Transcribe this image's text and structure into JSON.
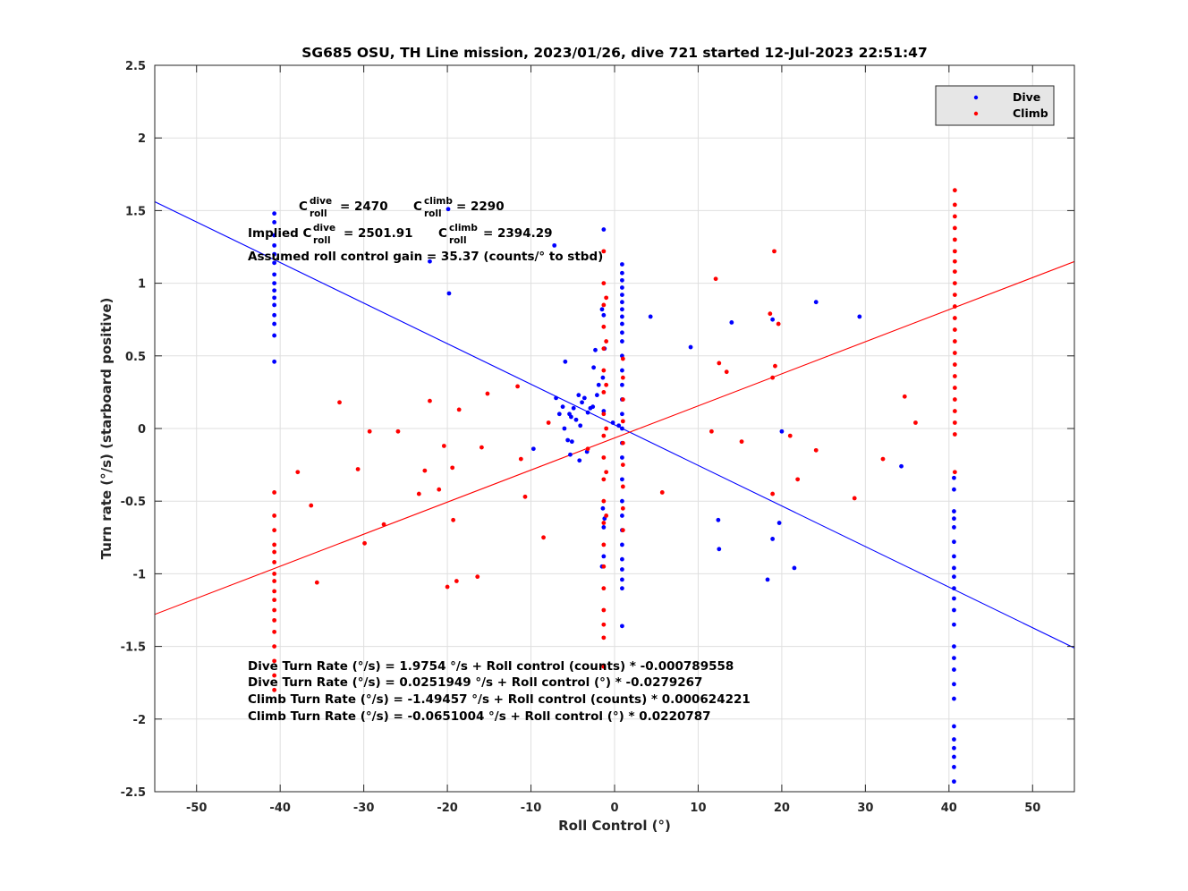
{
  "chart_data": {
    "type": "scatter",
    "title": "SG685 OSU, TH Line mission, 2023/01/26, dive 721 started 12-Jul-2023 22:51:47",
    "xlabel": "Roll Control (°)",
    "ylabel": "Turn rate (°/s) (starboard positive)",
    "xlim": [
      -55,
      55
    ],
    "ylim": [
      -2.5,
      2.5
    ],
    "xticks": [
      -50,
      -40,
      -30,
      -20,
      -10,
      0,
      10,
      20,
      30,
      40,
      50
    ],
    "yticks": [
      -2.5,
      -2,
      -1.5,
      -1,
      -0.5,
      0,
      0.5,
      1,
      1.5,
      2,
      2.5
    ],
    "xtick_labels": [
      "-50",
      "-40",
      "-30",
      "-20",
      "-10",
      "0",
      "10",
      "20",
      "30",
      "40",
      "50"
    ],
    "ytick_labels": [
      "-2.5",
      "-2",
      "-1.5",
      "-1",
      "-0.5",
      "0",
      "0.5",
      "1",
      "1.5",
      "2",
      "2.5"
    ],
    "grid": true,
    "legend_position": "top-right",
    "colors": {
      "dive": "#0000ff",
      "climb": "#ff0000"
    },
    "series": [
      {
        "name": "Dive",
        "color": "#0000ff",
        "points": [
          [
            -40.7,
            1.48
          ],
          [
            -40.7,
            1.42
          ],
          [
            -40.7,
            1.33
          ],
          [
            -40.7,
            1.26
          ],
          [
            -40.7,
            1.2
          ],
          [
            -40.7,
            1.14
          ],
          [
            -40.7,
            1.06
          ],
          [
            -40.7,
            1.0
          ],
          [
            -40.7,
            0.95
          ],
          [
            -40.7,
            0.9
          ],
          [
            -40.7,
            0.85
          ],
          [
            -40.7,
            0.78
          ],
          [
            -40.7,
            0.72
          ],
          [
            -40.7,
            0.64
          ],
          [
            -40.7,
            0.46
          ],
          [
            -19.9,
            1.51
          ],
          [
            -19.8,
            0.93
          ],
          [
            -22.1,
            1.15
          ],
          [
            -7.2,
            1.26
          ],
          [
            -5.9,
            0.46
          ],
          [
            -7.0,
            0.21
          ],
          [
            -6.6,
            0.1
          ],
          [
            -6.2,
            0.15
          ],
          [
            -5.4,
            0.1
          ],
          [
            -5.2,
            0.08
          ],
          [
            -4.9,
            0.14
          ],
          [
            -4.6,
            0.06
          ],
          [
            -4.3,
            0.23
          ],
          [
            -4.1,
            0.02
          ],
          [
            -3.9,
            0.18
          ],
          [
            -3.6,
            0.21
          ],
          [
            -3.2,
            0.11
          ],
          [
            -2.9,
            0.14
          ],
          [
            -2.6,
            0.15
          ],
          [
            -2.3,
            0.54
          ],
          [
            -2.5,
            0.42
          ],
          [
            -2.1,
            0.23
          ],
          [
            -1.9,
            0.3
          ],
          [
            -6.0,
            0.0
          ],
          [
            -5.6,
            -0.08
          ],
          [
            -5.1,
            -0.09
          ],
          [
            -4.2,
            -0.22
          ],
          [
            -5.3,
            -0.18
          ],
          [
            -9.7,
            -0.14
          ],
          [
            -3.3,
            -0.16
          ],
          [
            -0.2,
            0.04
          ],
          [
            0.5,
            0.02
          ],
          [
            -1.3,
            1.37
          ],
          [
            -1.5,
            0.82
          ],
          [
            -1.3,
            0.78
          ],
          [
            -1.2,
            0.55
          ],
          [
            -1.4,
            0.35
          ],
          [
            -1.3,
            0.12
          ],
          [
            -1.4,
            -0.55
          ],
          [
            -1.3,
            -0.68
          ],
          [
            -1.5,
            -0.95
          ],
          [
            -1.3,
            -0.88
          ],
          [
            -1.2,
            -0.62
          ],
          [
            0.9,
            1.13
          ],
          [
            0.9,
            1.07
          ],
          [
            0.9,
            1.02
          ],
          [
            0.9,
            0.97
          ],
          [
            0.9,
            0.92
          ],
          [
            0.9,
            0.87
          ],
          [
            0.9,
            0.82
          ],
          [
            0.9,
            0.77
          ],
          [
            0.9,
            0.72
          ],
          [
            0.9,
            0.66
          ],
          [
            0.9,
            0.6
          ],
          [
            0.9,
            0.5
          ],
          [
            0.9,
            0.4
          ],
          [
            0.9,
            0.3
          ],
          [
            0.9,
            0.2
          ],
          [
            0.9,
            0.1
          ],
          [
            0.9,
            0.0
          ],
          [
            0.9,
            -0.1
          ],
          [
            0.9,
            -0.2
          ],
          [
            0.9,
            -0.35
          ],
          [
            0.9,
            -0.5
          ],
          [
            0.9,
            -0.6
          ],
          [
            0.9,
            -0.7
          ],
          [
            0.9,
            -0.8
          ],
          [
            0.9,
            -0.9
          ],
          [
            0.9,
            -0.97
          ],
          [
            0.9,
            -1.04
          ],
          [
            0.9,
            -1.1
          ],
          [
            0.9,
            -1.36
          ],
          [
            4.3,
            0.77
          ],
          [
            9.1,
            0.56
          ],
          [
            14.0,
            0.73
          ],
          [
            18.9,
            0.75
          ],
          [
            24.1,
            0.87
          ],
          [
            29.3,
            0.77
          ],
          [
            20.0,
            -0.02
          ],
          [
            34.3,
            -0.26
          ],
          [
            12.4,
            -0.63
          ],
          [
            12.5,
            -0.83
          ],
          [
            18.9,
            -0.76
          ],
          [
            19.7,
            -0.65
          ],
          [
            21.5,
            -0.96
          ],
          [
            18.3,
            -1.04
          ],
          [
            40.6,
            -0.34
          ],
          [
            40.6,
            -0.42
          ],
          [
            40.6,
            -0.57
          ],
          [
            40.6,
            -0.62
          ],
          [
            40.6,
            -0.68
          ],
          [
            40.6,
            -0.78
          ],
          [
            40.6,
            -0.88
          ],
          [
            40.6,
            -0.96
          ],
          [
            40.6,
            -1.02
          ],
          [
            40.6,
            -1.1
          ],
          [
            40.6,
            -1.17
          ],
          [
            40.6,
            -1.25
          ],
          [
            40.6,
            -1.35
          ],
          [
            40.6,
            -1.5
          ],
          [
            40.6,
            -1.58
          ],
          [
            40.6,
            -1.66
          ],
          [
            40.6,
            -1.76
          ],
          [
            40.6,
            -1.86
          ],
          [
            40.6,
            -2.05
          ],
          [
            40.6,
            -2.14
          ],
          [
            40.6,
            -2.2
          ],
          [
            40.6,
            -2.26
          ],
          [
            40.6,
            -2.33
          ],
          [
            40.6,
            -2.43
          ]
        ]
      },
      {
        "name": "Climb",
        "color": "#ff0000",
        "points": [
          [
            -40.7,
            -0.44
          ],
          [
            -40.7,
            -0.6
          ],
          [
            -40.7,
            -0.7
          ],
          [
            -40.7,
            -0.8
          ],
          [
            -40.7,
            -0.85
          ],
          [
            -40.7,
            -0.92
          ],
          [
            -40.7,
            -1.0
          ],
          [
            -40.7,
            -1.05
          ],
          [
            -40.7,
            -1.12
          ],
          [
            -40.7,
            -1.18
          ],
          [
            -40.7,
            -1.25
          ],
          [
            -40.7,
            -1.32
          ],
          [
            -40.7,
            -1.4
          ],
          [
            -40.7,
            -1.5
          ],
          [
            -40.7,
            -1.6
          ],
          [
            -40.7,
            -1.7
          ],
          [
            -40.7,
            -1.8
          ],
          [
            -37.9,
            -0.3
          ],
          [
            -36.3,
            -0.53
          ],
          [
            -35.6,
            -1.06
          ],
          [
            -32.9,
            0.18
          ],
          [
            -30.7,
            -0.28
          ],
          [
            -29.9,
            -0.79
          ],
          [
            -29.3,
            -0.02
          ],
          [
            -27.6,
            -0.66
          ],
          [
            -25.9,
            -0.02
          ],
          [
            -23.4,
            -0.45
          ],
          [
            -22.7,
            -0.29
          ],
          [
            -22.1,
            0.19
          ],
          [
            -21.0,
            -0.42
          ],
          [
            -20.4,
            -0.12
          ],
          [
            -20.0,
            -1.09
          ],
          [
            -19.4,
            -0.27
          ],
          [
            -19.3,
            -0.63
          ],
          [
            -18.9,
            -1.05
          ],
          [
            -18.6,
            0.13
          ],
          [
            -16.4,
            -1.02
          ],
          [
            -15.9,
            -0.13
          ],
          [
            -15.2,
            0.24
          ],
          [
            -11.6,
            0.29
          ],
          [
            -11.2,
            -0.21
          ],
          [
            -10.7,
            -0.47
          ],
          [
            -8.5,
            -0.75
          ],
          [
            -7.9,
            0.04
          ],
          [
            -3.2,
            -0.14
          ],
          [
            -1.3,
            1.22
          ],
          [
            -1.3,
            1.0
          ],
          [
            -1.3,
            0.85
          ],
          [
            -1.3,
            0.7
          ],
          [
            -1.3,
            0.55
          ],
          [
            -1.3,
            0.4
          ],
          [
            -1.3,
            0.25
          ],
          [
            -1.3,
            0.1
          ],
          [
            -1.3,
            -0.05
          ],
          [
            -1.3,
            -0.2
          ],
          [
            -1.3,
            -0.35
          ],
          [
            -1.3,
            -0.5
          ],
          [
            -1.3,
            -0.65
          ],
          [
            -1.3,
            -0.8
          ],
          [
            -1.3,
            -0.95
          ],
          [
            -1.3,
            -1.1
          ],
          [
            -1.3,
            -1.25
          ],
          [
            -1.3,
            -1.35
          ],
          [
            -1.3,
            -1.44
          ],
          [
            -1.3,
            -1.64
          ],
          [
            -1.0,
            0.9
          ],
          [
            -1.0,
            0.6
          ],
          [
            -1.0,
            0.3
          ],
          [
            -1.0,
            0.0
          ],
          [
            -1.0,
            -0.3
          ],
          [
            -1.0,
            -0.6
          ],
          [
            1.0,
            0.48
          ],
          [
            1.0,
            0.35
          ],
          [
            1.0,
            0.2
          ],
          [
            1.0,
            0.05
          ],
          [
            1.0,
            -0.1
          ],
          [
            1.0,
            -0.25
          ],
          [
            1.0,
            -0.4
          ],
          [
            1.0,
            -0.55
          ],
          [
            1.0,
            -0.7
          ],
          [
            5.7,
            -0.44
          ],
          [
            11.6,
            -0.02
          ],
          [
            12.1,
            1.03
          ],
          [
            12.5,
            0.45
          ],
          [
            13.4,
            0.39
          ],
          [
            15.2,
            -0.09
          ],
          [
            18.6,
            0.79
          ],
          [
            18.9,
            0.35
          ],
          [
            18.9,
            -0.45
          ],
          [
            19.1,
            1.22
          ],
          [
            19.2,
            0.43
          ],
          [
            19.6,
            0.72
          ],
          [
            21.0,
            -0.05
          ],
          [
            21.9,
            -0.35
          ],
          [
            24.1,
            -0.15
          ],
          [
            28.7,
            -0.48
          ],
          [
            32.1,
            -0.21
          ],
          [
            34.7,
            0.22
          ],
          [
            36.0,
            0.04
          ],
          [
            40.7,
            1.64
          ],
          [
            40.7,
            1.54
          ],
          [
            40.7,
            1.46
          ],
          [
            40.7,
            1.38
          ],
          [
            40.7,
            1.3
          ],
          [
            40.7,
            1.22
          ],
          [
            40.7,
            1.15
          ],
          [
            40.7,
            1.08
          ],
          [
            40.7,
            1.0
          ],
          [
            40.7,
            0.92
          ],
          [
            40.7,
            0.84
          ],
          [
            40.7,
            0.76
          ],
          [
            40.7,
            0.68
          ],
          [
            40.7,
            0.6
          ],
          [
            40.7,
            0.52
          ],
          [
            40.7,
            0.44
          ],
          [
            40.7,
            0.36
          ],
          [
            40.7,
            0.28
          ],
          [
            40.7,
            0.2
          ],
          [
            40.7,
            0.12
          ],
          [
            40.7,
            0.04
          ],
          [
            40.7,
            -0.04
          ],
          [
            40.7,
            -0.3
          ]
        ]
      }
    ],
    "fit_lines": [
      {
        "series": "Dive",
        "color": "#0000ff",
        "intercept": 0.0251949,
        "slope": -0.0279267
      },
      {
        "series": "Climb",
        "color": "#ff0000",
        "intercept": -0.0651004,
        "slope": 0.0220787
      }
    ],
    "annotations": {
      "c_roll_line": {
        "c_prefix": "C",
        "dive_sup": "dive",
        "roll_sub": "roll",
        "dive_value": " = 2470",
        "climb_sup": "climb",
        "climb_value": " = 2290"
      },
      "implied_line": {
        "prefix": "Implied C",
        "dive_sup": "dive",
        "roll_sub": "roll",
        "dive_value": " = 2501.91",
        "c_prefix": "C",
        "climb_sup": "climb",
        "climb_value": " = 2394.29"
      },
      "gain_line": "Assumed roll control gain = 35.37 (counts/° to stbd)",
      "equations": [
        "Dive Turn Rate (°/s) = 1.9754 °/s + Roll control (counts) * -0.000789558",
        "Dive Turn Rate (°/s) = 0.0251949 °/s + Roll control (°) * -0.0279267",
        "Climb Turn Rate (°/s) = -1.49457 °/s + Roll control (counts) * 0.000624221",
        "Climb Turn Rate (°/s) = -0.0651004 °/s + Roll control (°) * 0.0220787"
      ]
    }
  }
}
